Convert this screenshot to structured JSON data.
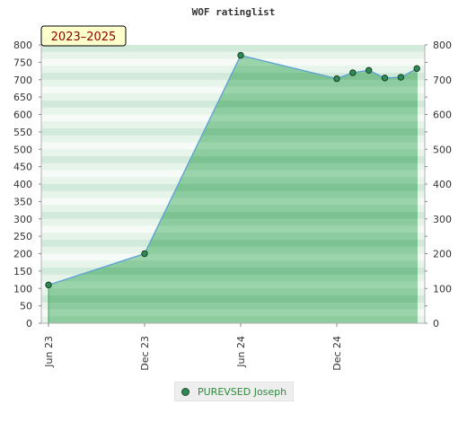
{
  "chart_data": {
    "type": "area",
    "title": "WOF ratinglist",
    "badge": "2023–2025",
    "ylim": [
      0,
      800
    ],
    "yticks": [
      "0",
      "50",
      "100",
      "150",
      "200",
      "250",
      "300",
      "350",
      "400",
      "450",
      "500",
      "550",
      "600",
      "650",
      "700",
      "750",
      "800"
    ],
    "yticks_right": [
      "0",
      "100",
      "200",
      "300",
      "400",
      "500",
      "600",
      "700",
      "800"
    ],
    "xticks": [
      "Jun 23",
      "Dec 23",
      "Jun 24",
      "Dec 24"
    ],
    "series": [
      {
        "name": "PUREVSED Joseph",
        "color": "#2e8b57",
        "points": [
          {
            "date": "2023-06",
            "value": 110
          },
          {
            "date": "2023-12",
            "value": 200
          },
          {
            "date": "2024-06",
            "value": 770
          },
          {
            "date": "2024-12",
            "value": 703
          },
          {
            "date": "2025-01",
            "value": 720
          },
          {
            "date": "2025-02",
            "value": 727
          },
          {
            "date": "2025-03",
            "value": 705
          },
          {
            "date": "2025-04",
            "value": 707
          },
          {
            "date": "2025-05",
            "value": 732
          }
        ]
      }
    ],
    "legend": "bottom-center"
  }
}
